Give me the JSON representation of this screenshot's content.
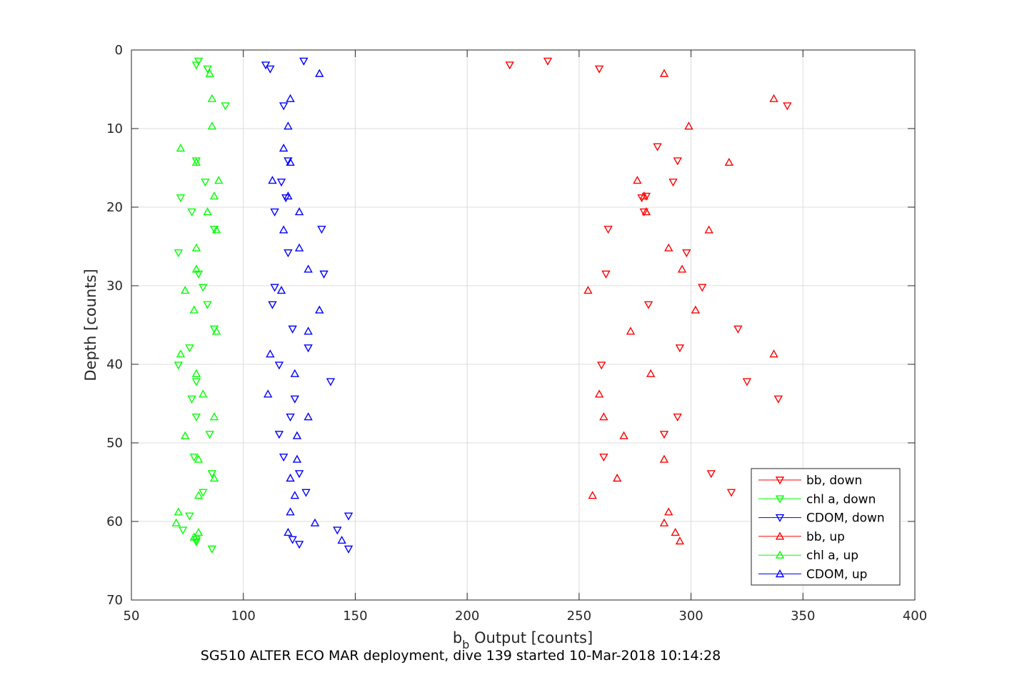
{
  "chart_data": {
    "type": "scatter",
    "xlabel_main": "b",
    "xlabel_sub": "b",
    "xlabel_rest": " Output [counts]",
    "ylabel": "Depth [counts]",
    "caption": "SG510 ALTER ECO MAR deployment, dive 139 started 10-Mar-2018 10:14:28",
    "xlim": [
      50,
      400
    ],
    "ylim": [
      0,
      70
    ],
    "y_reversed": true,
    "xticks": [
      50,
      100,
      150,
      200,
      250,
      300,
      350,
      400
    ],
    "yticks": [
      0,
      10,
      20,
      30,
      40,
      50,
      60,
      70
    ],
    "grid": true,
    "legend_position": "bottom-right",
    "series": [
      {
        "name": "bb, down",
        "color": "#ff0000",
        "marker": "triangle-down",
        "points": [
          [
            236,
            1.4
          ],
          [
            219,
            1.9
          ],
          [
            259,
            2.4
          ],
          [
            343,
            7.1
          ],
          [
            285,
            12.3
          ],
          [
            294,
            14.1
          ],
          [
            292,
            16.8
          ],
          [
            278,
            18.8
          ],
          [
            280,
            18.6
          ],
          [
            279,
            20.6
          ],
          [
            263,
            22.8
          ],
          [
            298,
            25.8
          ],
          [
            262,
            28.5
          ],
          [
            305,
            30.2
          ],
          [
            281,
            32.4
          ],
          [
            321,
            35.5
          ],
          [
            295,
            37.9
          ],
          [
            260,
            40.1
          ],
          [
            325,
            42.2
          ],
          [
            339,
            44.4
          ],
          [
            294,
            46.7
          ],
          [
            288,
            48.9
          ],
          [
            261,
            51.8
          ],
          [
            309,
            53.9
          ],
          [
            318,
            56.3
          ]
        ]
      },
      {
        "name": "chl a, down",
        "color": "#00ff00",
        "marker": "triangle-down",
        "points": [
          [
            80,
            1.4
          ],
          [
            79,
            1.9
          ],
          [
            84,
            2.4
          ],
          [
            92,
            7.1
          ],
          [
            79,
            14.1
          ],
          [
            83,
            16.8
          ],
          [
            72,
            18.8
          ],
          [
            77,
            20.6
          ],
          [
            87,
            22.8
          ],
          [
            71,
            25.8
          ],
          [
            80,
            28.5
          ],
          [
            82,
            30.2
          ],
          [
            84,
            32.4
          ],
          [
            87,
            35.5
          ],
          [
            76,
            37.9
          ],
          [
            71,
            40.1
          ],
          [
            79,
            42.2
          ],
          [
            77,
            44.4
          ],
          [
            79,
            46.7
          ],
          [
            85,
            48.9
          ],
          [
            78,
            51.8
          ],
          [
            86,
            53.9
          ],
          [
            82,
            56.3
          ],
          [
            76,
            59.3
          ],
          [
            73,
            61.1
          ],
          [
            79,
            62.6
          ],
          [
            86,
            63.5
          ],
          [
            79,
            62.3
          ]
        ]
      },
      {
        "name": "CDOM, down",
        "color": "#0000ff",
        "marker": "triangle-down",
        "points": [
          [
            127,
            1.4
          ],
          [
            110,
            1.9
          ],
          [
            112,
            2.4
          ],
          [
            118,
            7.1
          ],
          [
            120,
            14.1
          ],
          [
            117,
            16.8
          ],
          [
            119,
            18.8
          ],
          [
            114,
            20.6
          ],
          [
            135,
            22.8
          ],
          [
            120,
            25.8
          ],
          [
            136,
            28.5
          ],
          [
            114,
            30.2
          ],
          [
            113,
            32.4
          ],
          [
            122,
            35.5
          ],
          [
            129,
            37.9
          ],
          [
            116,
            40.1
          ],
          [
            139,
            42.2
          ],
          [
            123,
            44.4
          ],
          [
            121,
            46.7
          ],
          [
            116,
            48.9
          ],
          [
            118,
            51.8
          ],
          [
            125,
            53.9
          ],
          [
            128,
            56.3
          ],
          [
            147,
            59.3
          ],
          [
            142,
            61.1
          ],
          [
            125,
            62.9
          ],
          [
            147,
            63.5
          ],
          [
            122,
            62.3
          ]
        ]
      },
      {
        "name": "bb, up",
        "color": "#ff0000",
        "marker": "triangle-up",
        "points": [
          [
            288,
            3.0
          ],
          [
            337,
            6.2
          ],
          [
            299,
            9.7
          ],
          [
            317,
            14.3
          ],
          [
            276,
            16.6
          ],
          [
            279,
            18.6
          ],
          [
            280,
            20.6
          ],
          [
            308,
            22.9
          ],
          [
            290,
            25.2
          ],
          [
            296,
            27.9
          ],
          [
            254,
            30.6
          ],
          [
            302,
            33.1
          ],
          [
            273,
            35.8
          ],
          [
            337,
            38.7
          ],
          [
            282,
            41.2
          ],
          [
            259,
            43.8
          ],
          [
            261,
            46.7
          ],
          [
            270,
            49.1
          ],
          [
            288,
            52.1
          ],
          [
            267,
            54.5
          ],
          [
            256,
            56.7
          ],
          [
            290,
            58.8
          ],
          [
            288,
            60.2
          ],
          [
            293,
            61.4
          ],
          [
            295,
            62.5
          ]
        ]
      },
      {
        "name": "chl a, up",
        "color": "#00ff00",
        "marker": "triangle-up",
        "points": [
          [
            85,
            3.0
          ],
          [
            86,
            6.2
          ],
          [
            86,
            9.7
          ],
          [
            72,
            12.5
          ],
          [
            79,
            14.3
          ],
          [
            89,
            16.6
          ],
          [
            87,
            18.6
          ],
          [
            84,
            20.6
          ],
          [
            88,
            22.9
          ],
          [
            79,
            25.2
          ],
          [
            79,
            27.9
          ],
          [
            74,
            30.6
          ],
          [
            78,
            33.1
          ],
          [
            88,
            35.8
          ],
          [
            72,
            38.7
          ],
          [
            79,
            41.2
          ],
          [
            82,
            43.8
          ],
          [
            87,
            46.7
          ],
          [
            74,
            49.1
          ],
          [
            80,
            52.1
          ],
          [
            87,
            54.5
          ],
          [
            80,
            56.7
          ],
          [
            71,
            58.8
          ],
          [
            70,
            60.2
          ],
          [
            80,
            61.4
          ],
          [
            78,
            62.0
          ]
        ]
      },
      {
        "name": "CDOM, up",
        "color": "#0000ff",
        "marker": "triangle-up",
        "points": [
          [
            134,
            3.0
          ],
          [
            121,
            6.2
          ],
          [
            120,
            9.7
          ],
          [
            118,
            12.5
          ],
          [
            121,
            14.3
          ],
          [
            113,
            16.6
          ],
          [
            120,
            18.6
          ],
          [
            125,
            20.6
          ],
          [
            118,
            22.9
          ],
          [
            125,
            25.2
          ],
          [
            129,
            27.9
          ],
          [
            117,
            30.6
          ],
          [
            134,
            33.1
          ],
          [
            129,
            35.8
          ],
          [
            112,
            38.7
          ],
          [
            123,
            41.2
          ],
          [
            111,
            43.8
          ],
          [
            129,
            46.7
          ],
          [
            124,
            49.1
          ],
          [
            124,
            52.1
          ],
          [
            121,
            54.5
          ],
          [
            123,
            56.7
          ],
          [
            121,
            58.8
          ],
          [
            132,
            60.2
          ],
          [
            120,
            61.4
          ],
          [
            144,
            62.4
          ]
        ]
      }
    ]
  }
}
